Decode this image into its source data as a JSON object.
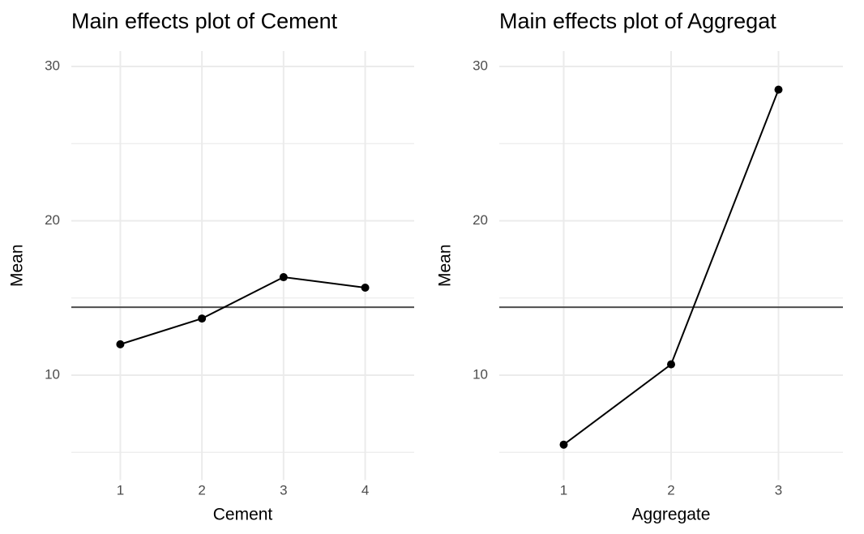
{
  "chart_data": [
    {
      "type": "line",
      "title": "Main effects plot of Cement",
      "x_label": "Cement",
      "y_label": "Mean",
      "x": [
        1,
        2,
        3,
        4
      ],
      "values": [
        12.0,
        13.67,
        16.35,
        15.67
      ],
      "color": "#000000",
      "hline": 14.4,
      "hline_color": "#4d4d4d",
      "xlim": [
        0.4,
        4.6
      ],
      "xticks": [
        1,
        2,
        3,
        4
      ],
      "ylim": [
        3.2,
        31
      ],
      "yticks": [
        10,
        20,
        30
      ],
      "y_minor_ticks": [
        5,
        15,
        25
      ],
      "grid": true
    },
    {
      "type": "line",
      "title": "Main effects plot of Aggregat",
      "x_label": "Aggregate",
      "y_label": "Mean",
      "x": [
        1,
        2,
        3
      ],
      "values": [
        5.5,
        10.7,
        28.5
      ],
      "color": "#000000",
      "hline": 14.4,
      "hline_color": "#4d4d4d",
      "xlim": [
        0.4,
        3.6
      ],
      "xticks": [
        1,
        2,
        3
      ],
      "ylim": [
        3.2,
        31
      ],
      "yticks": [
        10,
        20,
        30
      ],
      "y_minor_ticks": [
        5,
        15,
        25
      ],
      "grid": true
    }
  ]
}
